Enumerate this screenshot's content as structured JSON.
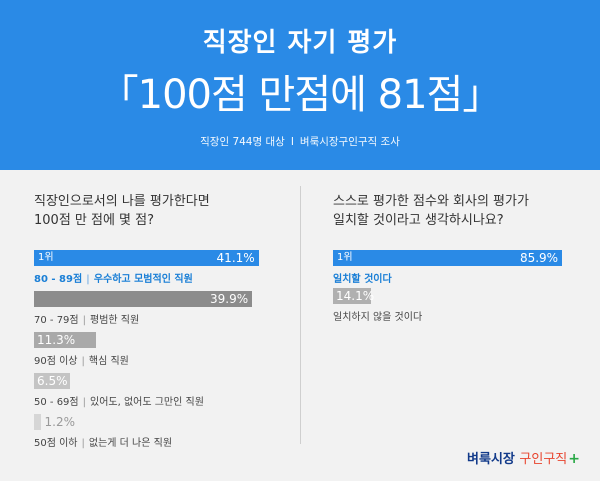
{
  "header": {
    "title": "직장인 자기 평가",
    "headline": "「100점 만점에 81점」",
    "subject": "직장인 744명 대상",
    "separator": "I",
    "source": "벼룩시장구인구직 조사",
    "bg_color": "#2a8ae6"
  },
  "left": {
    "question_line1": "직장인으로서의 나를 평가한다면",
    "question_line2": "100점 만 점에 몇 점?"
  },
  "right": {
    "question_line1": "스스로 평가한 점수와 회사의 평가가",
    "question_line2": "일치할 것이라고 생각하시나요?"
  },
  "rank_label": "1위",
  "logo": {
    "part1": "벼룩시장",
    "part2": "구인구직",
    "plus": "+"
  },
  "chart_data": [
    {
      "type": "bar",
      "orientation": "horizontal",
      "title": "직장인으로서의 나를 평가한다면 100점 만 점에 몇 점?",
      "categories": [
        "80 - 89점",
        "70 - 79점",
        "90점 이상",
        "50 - 69점",
        "50점 이하"
      ],
      "descriptions": [
        "우수하고 모범적인 직원",
        "평범한 직원",
        "핵심 직원",
        "있어도, 없어도 그만인 직원",
        "없는게 더 나은 직원"
      ],
      "values": [
        41.1,
        39.9,
        11.3,
        6.5,
        1.2
      ],
      "value_labels": [
        "41.1%",
        "39.9%",
        "11.3%",
        "6.5%",
        "1.2%"
      ],
      "highlight_index": 0,
      "colors": [
        "#2a8ae6",
        "#8c8c8c",
        "#a9a9a9",
        "#c4c4c4",
        "#d6d6d6"
      ],
      "xlim": [
        0,
        45
      ]
    },
    {
      "type": "bar",
      "orientation": "horizontal",
      "title": "스스로 평가한 점수와 회사의 평가가 일치할 것이라고 생각하시나요?",
      "categories": [
        "일치할 것이다",
        "일치하지 않을 것이다"
      ],
      "values": [
        85.9,
        14.1
      ],
      "value_labels": [
        "85.9%",
        "14.1%"
      ],
      "highlight_index": 0,
      "colors": [
        "#2a8ae6",
        "#b0b0b0"
      ],
      "xlim": [
        0,
        90
      ]
    }
  ]
}
